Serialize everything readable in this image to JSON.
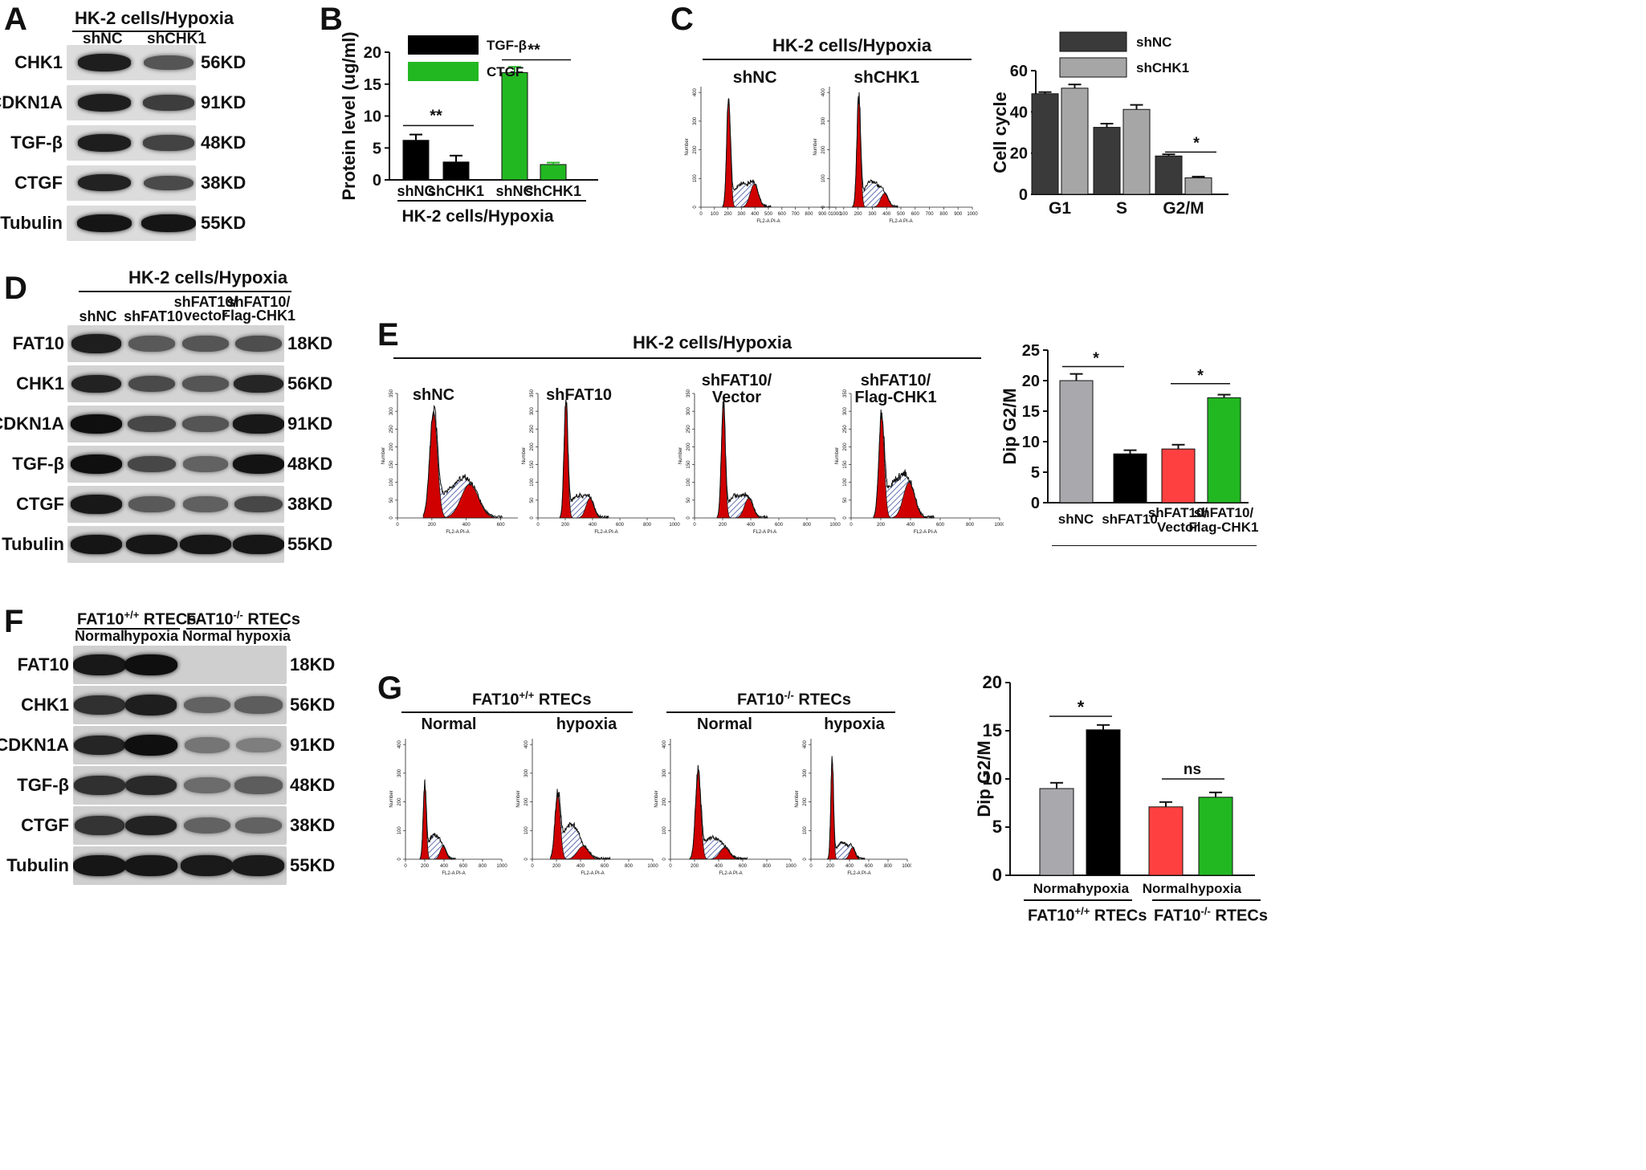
{
  "panel_A": {
    "letter": "A",
    "group": "HK-2 cells/Hypoxia",
    "lanes": [
      "shNC",
      "shCHK1"
    ],
    "proteins": [
      "CHK1",
      "CDKN1A",
      "TGF-β",
      "CTGF",
      "Tubulin"
    ],
    "sizes": [
      "56KD",
      "91KD",
      "48KD",
      "38KD",
      "55KD"
    ]
  },
  "panel_B": {
    "letter": "B",
    "group": "HK-2 cells/Hypoxia"
  },
  "panel_C": {
    "letter": "C",
    "group": "HK-2 cells/Hypoxia",
    "hist_titles": [
      "shNC",
      "shCHK1"
    ],
    "hist_ylabel": "Number",
    "hist_xlabel": "FL2-A PI-A",
    "hist_ticks": [
      "0",
      "100",
      "200",
      "300",
      "400",
      "500",
      "600",
      "700",
      "800",
      "900",
      "1000"
    ]
  },
  "panel_D": {
    "letter": "D",
    "group": "HK-2 cells/Hypoxia",
    "lanes": [
      "shNC",
      "shFAT10",
      "shFAT10/\nvector",
      "shFAT10/\nFlag-CHK1"
    ],
    "proteins": [
      "FAT10",
      "CHK1",
      "CDKN1A",
      "TGF-β",
      "CTGF",
      "Tubulin"
    ],
    "sizes": [
      "18KD",
      "56KD",
      "91KD",
      "48KD",
      "38KD",
      "55KD"
    ]
  },
  "panel_E": {
    "letter": "E",
    "group": "HK-2 cells/Hypoxia",
    "hist_titles": [
      "shNC",
      "shFAT10",
      "shFAT10/\nVector",
      "shFAT10/\nFlag-CHK1"
    ],
    "hist_ylabel": "Number",
    "hist_xlabel": "FL2-A PI-A"
  },
  "panel_F": {
    "letter": "F",
    "groups": [
      "FAT10",
      "FAT10"
    ],
    "group_sup": [
      "+/+",
      "-/-"
    ],
    "group_suffix": " RTECs",
    "lanes": [
      "Normal",
      "hypoxia",
      "Normal",
      "hypoxia"
    ],
    "proteins": [
      "FAT10",
      "CHK1",
      "CDKN1A",
      "TGF-β",
      "CTGF",
      "Tubulin"
    ],
    "sizes": [
      "18KD",
      "56KD",
      "91KD",
      "48KD",
      "38KD",
      "55KD"
    ]
  },
  "panel_G": {
    "letter": "G",
    "groups": [
      "FAT10",
      "FAT10"
    ],
    "group_sup": [
      "+/+",
      "-/-"
    ],
    "group_suffix": " RTECs",
    "hist_titles": [
      "Normal",
      "hypoxia",
      "Normal",
      "hypoxia"
    ],
    "hist_ylabel": "Number",
    "hist_xlabel": "FL2-A PI-A"
  },
  "colors": {
    "black": "#000000",
    "green": "#22b822",
    "gray_dark": "#3a3a3a",
    "gray_light": "#a6a6a6",
    "gray_bar": "#a8a8ad",
    "red": "#ff4040",
    "hist_red": "#d00000",
    "hist_hatch": "#3b4fa0"
  },
  "chart_data": [
    {
      "id": "B",
      "type": "bar",
      "categories": [
        "shNC",
        "shCHK1",
        "shNC",
        "shCHK1"
      ],
      "series": [
        {
          "name": "TGF-β",
          "values": [
            6.2,
            2.8,
            null,
            null
          ],
          "errors": [
            0.9,
            1.0,
            null,
            null
          ],
          "color": "#000000"
        },
        {
          "name": "CTGF",
          "values": [
            null,
            null,
            16.8,
            2.4
          ],
          "errors": [
            null,
            null,
            0.9,
            0.3
          ],
          "color": "#22b822"
        }
      ],
      "ylabel": "Protein level (ug/ml)",
      "xlabel": "HK-2 cells/Hypoxia",
      "ylim": [
        0,
        20
      ],
      "yticks": [
        0,
        5,
        10,
        15,
        20
      ],
      "significance": [
        {
          "between": [
            0,
            1
          ],
          "label": "**"
        },
        {
          "between": [
            2,
            3
          ],
          "label": "**"
        }
      ],
      "legend": "top-left"
    },
    {
      "id": "C",
      "type": "bar",
      "categories": [
        "G1",
        "S",
        "G2/M"
      ],
      "series": [
        {
          "name": "shNC",
          "values": [
            48.8,
            32.5,
            18.6
          ],
          "errors": [
            0.8,
            1.8,
            0.8
          ],
          "color": "#3a3a3a"
        },
        {
          "name": "shCHK1",
          "values": [
            51.5,
            41.2,
            8.0
          ],
          "errors": [
            1.8,
            2.2,
            0.6
          ],
          "color": "#a6a6a6"
        }
      ],
      "ylabel": "Cell cycle",
      "ylim": [
        0,
        60
      ],
      "yticks": [
        0,
        20,
        40,
        60
      ],
      "significance": [
        {
          "category": "G2/M",
          "label": "*"
        }
      ],
      "legend": "top"
    },
    {
      "id": "E",
      "type": "bar",
      "categories": [
        "shNC",
        "shFAT10",
        "shFAT10/\nVector",
        "shFAT10/\nFlag-CHK1"
      ],
      "values": [
        20.0,
        8.0,
        8.8,
        17.2
      ],
      "errors": [
        1.1,
        0.6,
        0.7,
        0.5
      ],
      "colors": [
        "#a8a8ad",
        "#000000",
        "#ff4040",
        "#22b822"
      ],
      "ylabel": "Dip G2/M",
      "xlabel": "HK-2 cells/Hypoxia",
      "ylim": [
        0,
        25
      ],
      "yticks": [
        0,
        5,
        10,
        15,
        20,
        25
      ],
      "significance": [
        {
          "between": [
            0,
            1
          ],
          "label": "*"
        },
        {
          "between": [
            2,
            3
          ],
          "label": "*"
        }
      ]
    },
    {
      "id": "G",
      "type": "bar",
      "categories": [
        "Normal",
        "hypoxia",
        "Normal",
        "hypoxia"
      ],
      "values": [
        9.0,
        15.1,
        7.1,
        8.1
      ],
      "errors": [
        0.6,
        0.5,
        0.5,
        0.5
      ],
      "colors": [
        "#a8a8ad",
        "#000000",
        "#ff4040",
        "#22b822"
      ],
      "ylabel": "Dip G2/M",
      "ylim": [
        0,
        20
      ],
      "yticks": [
        0,
        5,
        10,
        15,
        20
      ],
      "significance": [
        {
          "between": [
            0,
            1
          ],
          "label": "*"
        },
        {
          "between": [
            2,
            3
          ],
          "label": "ns"
        }
      ]
    }
  ]
}
